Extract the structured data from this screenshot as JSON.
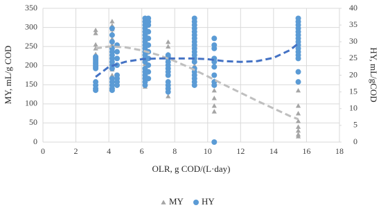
{
  "chart_data": {
    "type": "scatter",
    "xlabel": "OLR, g COD/(L·day)",
    "ylabel": "MY, mL/g COD",
    "y2label": "HY, mL/gCOD",
    "xlim": [
      0,
      18
    ],
    "xticks": [
      0,
      2,
      4,
      6,
      8,
      10,
      12,
      14,
      16,
      18
    ],
    "ylim": [
      0,
      350
    ],
    "yticks": [
      0,
      50,
      100,
      150,
      200,
      250,
      300,
      350
    ],
    "y2lim": [
      0,
      40
    ],
    "y2ticks": [
      0,
      5,
      10,
      15,
      20,
      25,
      30,
      35,
      40
    ],
    "grid": true,
    "legend": "bottom",
    "series": [
      {
        "name": "MY",
        "color": "#a5a5a5",
        "marker": "triangle",
        "x": [
          3.2,
          3.2,
          3.2,
          3.2,
          3.2,
          3.2,
          3.2,
          4.2,
          4.2,
          4.2,
          4.2,
          4.2,
          4.2,
          4.2,
          4.2,
          4.2,
          4.2,
          4.2,
          4.2,
          6.2,
          6.2,
          6.2,
          6.2,
          6.2,
          6.2,
          6.2,
          6.2,
          6.2,
          6.2,
          6.2,
          6.2,
          7.6,
          7.6,
          7.6,
          7.6,
          7.6,
          7.6,
          7.6,
          7.6,
          9.2,
          9.2,
          9.2,
          9.2,
          9.2,
          9.2,
          9.2,
          10.4,
          10.4,
          10.4,
          10.4,
          10.4,
          10.4,
          15.5,
          15.5,
          15.5,
          15.5,
          15.5,
          15.5,
          15.5,
          15.5
        ],
        "values": [
          293,
          285,
          255,
          245,
          230,
          220,
          210,
          316,
          305,
          295,
          285,
          270,
          255,
          240,
          225,
          210,
          200,
          190,
          175,
          325,
          310,
          290,
          275,
          255,
          240,
          220,
          205,
          190,
          175,
          160,
          145,
          262,
          250,
          230,
          215,
          195,
          175,
          150,
          120,
          300,
          280,
          255,
          230,
          200,
          180,
          160,
          160,
          150,
          135,
          115,
          95,
          80,
          135,
          95,
          75,
          55,
          40,
          30,
          20,
          15
        ]
      },
      {
        "name": "HY",
        "color": "#5b9bd5",
        "marker": "circle",
        "axis": "y2",
        "x": [
          3.2,
          3.2,
          3.2,
          3.2,
          3.2,
          3.2,
          3.2,
          3.2,
          3.2,
          3.2,
          3.2,
          3.2,
          4.2,
          4.2,
          4.2,
          4.2,
          4.2,
          4.2,
          4.2,
          4.2,
          4.2,
          4.2,
          4.2,
          4.2,
          4.2,
          4.2,
          4.2,
          4.5,
          4.5,
          4.5,
          4.5,
          4.5,
          4.5,
          4.5,
          4.5,
          6.2,
          6.2,
          6.2,
          6.2,
          6.2,
          6.2,
          6.2,
          6.2,
          6.2,
          6.2,
          6.2,
          6.2,
          6.2,
          6.2,
          6.2,
          6.2,
          6.2,
          6.2,
          6.2,
          6.2,
          6.4,
          6.4,
          6.4,
          6.4,
          6.4,
          6.4,
          6.4,
          6.4,
          6.4,
          6.4,
          6.4,
          7.6,
          7.6,
          7.6,
          7.6,
          7.6,
          7.6,
          7.6,
          7.6,
          7.6,
          7.6,
          7.6,
          7.6,
          9.2,
          9.2,
          9.2,
          9.2,
          9.2,
          9.2,
          9.2,
          9.2,
          9.2,
          9.2,
          9.2,
          9.2,
          9.2,
          9.2,
          9.2,
          9.2,
          9.2,
          9.2,
          9.2,
          9.2,
          10.4,
          10.4,
          10.4,
          10.4,
          10.4,
          10.4,
          10.4,
          10.4,
          10.4,
          10.4,
          15.5,
          15.5,
          15.5,
          15.5,
          15.5,
          15.5,
          15.5,
          15.5,
          15.5,
          15.5,
          15.5,
          15.5,
          15.5,
          15.5,
          15.5
        ],
        "values": [
          25.5,
          25,
          24.5,
          24,
          23.5,
          23,
          22.5,
          22,
          18,
          17,
          16,
          15.5,
          34,
          32,
          30,
          28,
          27,
          26,
          25,
          24,
          23,
          22,
          19,
          18,
          17,
          16,
          15.5,
          29,
          27,
          25,
          23,
          20,
          19,
          18,
          17,
          37,
          36,
          35,
          34,
          33,
          32,
          31,
          30,
          29,
          28,
          27,
          26,
          25,
          24,
          22,
          21,
          20,
          19,
          18,
          17,
          37,
          36,
          35,
          33,
          31,
          29,
          27,
          25,
          23,
          21,
          19,
          26,
          25.5,
          25,
          24,
          23,
          22,
          21,
          20,
          18,
          17,
          16,
          15,
          37,
          36,
          35,
          34,
          33,
          32,
          31,
          30,
          29,
          28,
          27,
          26,
          25,
          24,
          22,
          21,
          20,
          19,
          18,
          17,
          31,
          29,
          28,
          25,
          24,
          22.5,
          20,
          18,
          17,
          0,
          37,
          36,
          35,
          34,
          33,
          32,
          31,
          30,
          29,
          28,
          27,
          26,
          25,
          21,
          18
        ]
      }
    ],
    "trendlines": [
      {
        "color": "#bfbfbf",
        "x": [
          3.2,
          4,
          5,
          6,
          7,
          8,
          9,
          10,
          11,
          12,
          13,
          14,
          15,
          15.5
        ],
        "values": [
          245,
          250,
          248,
          240,
          228,
          212,
          193,
          172,
          150,
          129,
          108,
          88,
          68,
          60
        ]
      },
      {
        "color": "#4472c4",
        "axis": "y2",
        "x": [
          3.2,
          4,
          5,
          6,
          7,
          8,
          9,
          10,
          11,
          12,
          13,
          14,
          15,
          15.5
        ],
        "values": [
          19.5,
          22.5,
          24,
          24.8,
          25,
          25,
          25,
          24.8,
          24.2,
          24,
          24.2,
          25.2,
          27.5,
          29.5
        ]
      }
    ]
  }
}
